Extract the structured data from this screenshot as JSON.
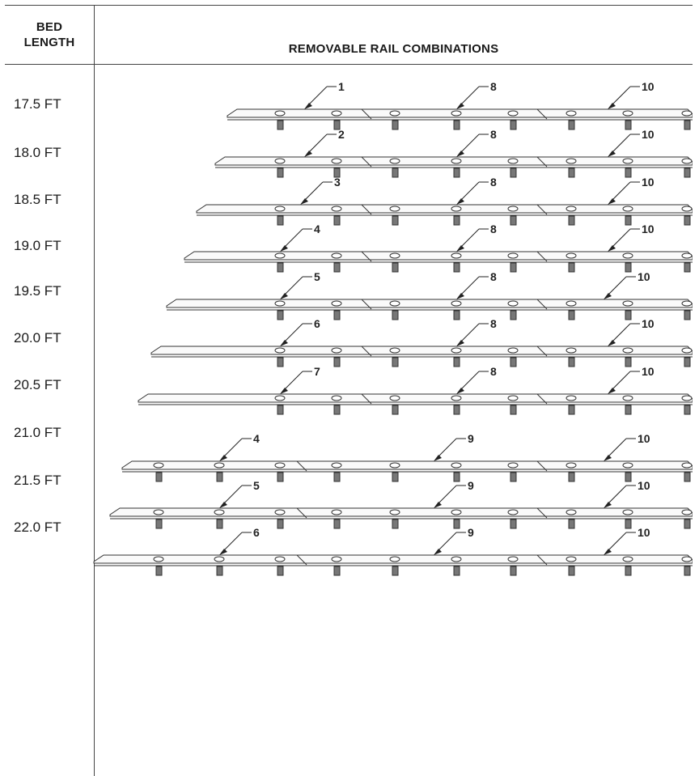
{
  "header": {
    "bed_line1": "BED",
    "bed_line2": "LENGTH",
    "rail_title": "REMOVABLE RAIL COMBINATIONS"
  },
  "rows": [
    {
      "bed_length": "17.5 FT",
      "callouts": [
        "1",
        "8",
        "10"
      ]
    },
    {
      "bed_length": "18.0 FT",
      "callouts": [
        "2",
        "8",
        "10"
      ]
    },
    {
      "bed_length": "18.5 FT",
      "callouts": [
        "3",
        "8",
        "10"
      ]
    },
    {
      "bed_length": "19.0 FT",
      "callouts": [
        "4",
        "8",
        "10"
      ]
    },
    {
      "bed_length": "19.5 FT",
      "callouts": [
        "5",
        "8",
        "10"
      ]
    },
    {
      "bed_length": "20.0 FT",
      "callouts": [
        "6",
        "8",
        "10"
      ]
    },
    {
      "bed_length": "20.5 FT",
      "callouts": [
        "7",
        "8",
        "10"
      ]
    },
    {
      "bed_length": "21.0 FT",
      "callouts": [
        "4",
        "9",
        "10"
      ]
    },
    {
      "bed_length": "21.5 FT",
      "callouts": [
        "5",
        "9",
        "10"
      ]
    },
    {
      "bed_length": "22.0 FT",
      "callouts": [
        "6",
        "9",
        "10"
      ]
    }
  ]
}
